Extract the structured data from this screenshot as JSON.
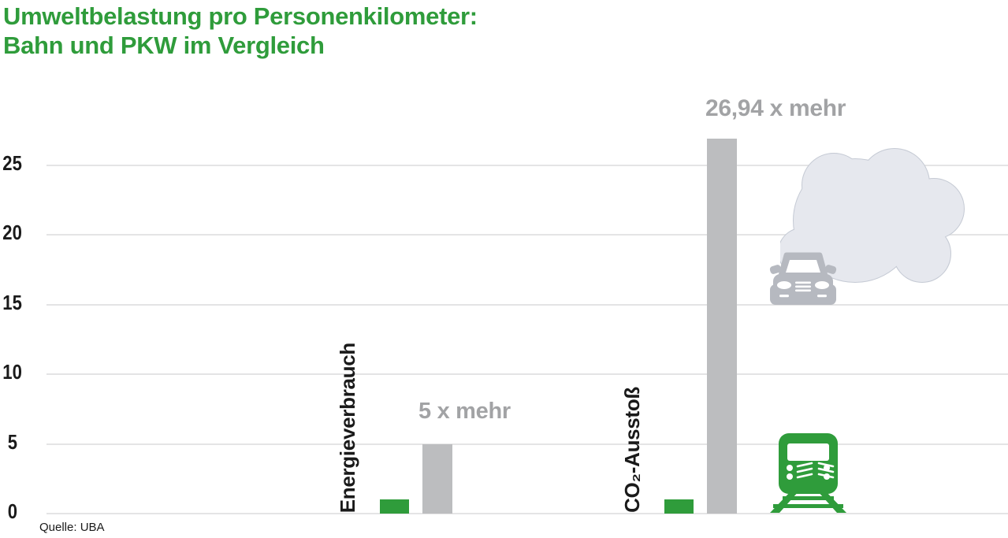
{
  "title": {
    "line1": "Umweltbelastung pro Personenkilometer:",
    "line2": "Bahn und PKW im Vergleich"
  },
  "source": "Quelle: UBA",
  "colors": {
    "green": "#2f9c3b",
    "bar_gray": "#bcbdbf",
    "annotation_gray": "#a2a3a5",
    "grid_gray": "#e4e4e5",
    "text_black": "#1a1a1a",
    "cloud_fill": "#e6e8ee",
    "cloud_stroke": "#c5cad4",
    "car_gray": "#b6b9c0"
  },
  "icons": {
    "train": "train-icon",
    "car": "car-icon",
    "cloud": "smoke-cloud-icon"
  },
  "chart_data": {
    "type": "bar",
    "title": "Umweltbelastung pro Personenkilometer: Bahn und PKW im Vergleich",
    "categories": [
      "Energieverbrauch",
      "CO₂-Ausstoß"
    ],
    "series": [
      {
        "name": "Bahn",
        "color": "#2f9c3b",
        "values": [
          1,
          1
        ]
      },
      {
        "name": "PKW",
        "color": "#bcbdbf",
        "values": [
          5,
          26.94
        ]
      }
    ],
    "annotations": [
      "5 x mehr",
      "26,94 x mehr"
    ],
    "yticks": [
      0,
      5,
      10,
      15,
      20,
      25
    ],
    "ylim": [
      0,
      27.5
    ],
    "xlabel": "",
    "ylabel": "",
    "grid": "horizontal",
    "legend": "none",
    "source": "Quelle: UBA"
  }
}
